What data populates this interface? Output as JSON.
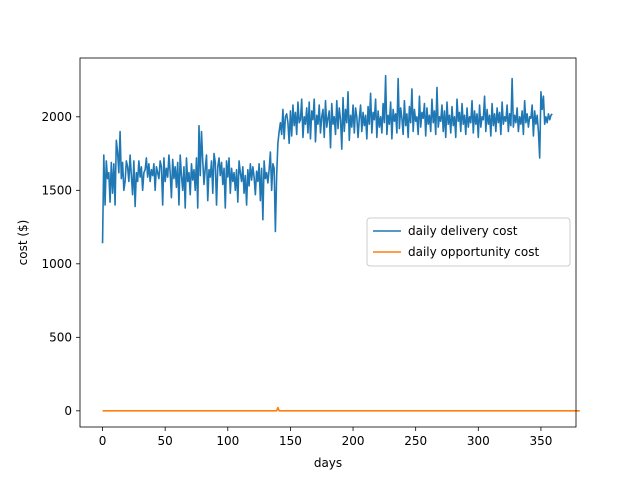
{
  "chart_data": {
    "type": "line",
    "title": "",
    "xlabel": "days",
    "ylabel": "cost ($)",
    "xlim": [
      -18,
      378
    ],
    "ylim": [
      -110,
      2400
    ],
    "xticks": [
      0,
      50,
      100,
      150,
      200,
      250,
      300,
      350
    ],
    "yticks": [
      0,
      500,
      1000,
      1500,
      2000
    ],
    "grid": false,
    "legend_position": "center-right",
    "series": [
      {
        "name": "daily delivery cost",
        "color": "#1f77b4",
        "x_start": 0,
        "x_step": 1,
        "values": [
          1140,
          1740,
          1400,
          1700,
          1580,
          1620,
          1420,
          1690,
          1480,
          1680,
          1400,
          1840,
          1760,
          1620,
          1900,
          1580,
          1690,
          1500,
          1560,
          1700,
          1660,
          1560,
          1740,
          1600,
          1470,
          1700,
          1390,
          1620,
          1560,
          1700,
          1590,
          1660,
          1500,
          1620,
          1640,
          1720,
          1590,
          1680,
          1560,
          1640,
          1600,
          1680,
          1500,
          1660,
          1620,
          1580,
          1700,
          1660,
          1400,
          1720,
          1560,
          1650,
          1590,
          1740,
          1620,
          1450,
          1710,
          1580,
          1660,
          1520,
          1690,
          1400,
          1740,
          1600,
          1500,
          1660,
          1380,
          1720,
          1560,
          1620,
          1470,
          1680,
          1570,
          1640,
          1500,
          1720,
          1380,
          1940,
          1600,
          1900,
          1700,
          1540,
          1650,
          1740,
          1430,
          1640,
          1590,
          1700,
          1480,
          1750,
          1690,
          1400,
          1660,
          1720,
          1600,
          1690,
          1540,
          1650,
          1380,
          1700,
          1590,
          1720,
          1480,
          1650,
          1560,
          1620,
          1500,
          1640,
          1420,
          1700,
          1620,
          1560,
          1660,
          1480,
          1600,
          1400,
          1640,
          1530,
          1680,
          1570,
          1660,
          1590,
          1470,
          1630,
          1560,
          1680,
          1430,
          1650,
          1300,
          1700,
          1580,
          1620,
          1550,
          1640,
          1760,
          1500,
          1680,
          1650,
          1220,
          1600,
          1820,
          1900,
          1960,
          1880,
          2050,
          1850,
          2000,
          2020,
          1960,
          1820,
          2040,
          1870,
          2080,
          1940,
          2030,
          1880,
          2100,
          1960,
          1980,
          2120,
          1860,
          2000,
          1950,
          2060,
          1890,
          2100,
          1850,
          2040,
          1980,
          2120,
          1830,
          2010,
          1950,
          2080,
          1890,
          2000,
          2050,
          1860,
          2110,
          1930,
          1990,
          2040,
          1790,
          2090,
          1950,
          2000,
          1880,
          2110,
          1920,
          2060,
          1980,
          1780,
          2130,
          1900,
          2050,
          1960,
          2170,
          1840,
          2010,
          1930,
          2080,
          1890,
          2060,
          2000,
          1860,
          1990,
          2080,
          1900,
          2030,
          1940,
          2010,
          1850,
          2070,
          1950,
          2160,
          1890,
          2030,
          1980,
          2120,
          1860,
          2040,
          1930,
          2000,
          1890,
          2090,
          1960,
          2280,
          1880,
          2010,
          1950,
          2100,
          1850,
          2050,
          1970,
          2020,
          1890,
          2260,
          1920,
          2060,
          1990,
          1880,
          2110,
          1940,
          2020,
          1860,
          2070,
          1960,
          2190,
          1900,
          2050,
          1970,
          2000,
          1880,
          2140,
          1930,
          2030,
          1990,
          2090,
          1870,
          2060,
          1950,
          2010,
          1900,
          2120,
          1960,
          2040,
          1880,
          2200,
          1930,
          2000,
          1970,
          2080,
          1900,
          2040,
          1860,
          2100,
          1950,
          2010,
          1890,
          2070,
          1940,
          2000,
          1860,
          2120,
          1970,
          2030,
          1900,
          2090,
          1950,
          2010,
          1880,
          2060,
          1930,
          2000,
          1960,
          2110,
          1890,
          2040,
          1950,
          2020,
          1860,
          2080,
          1930,
          2000,
          1980,
          2140,
          1900,
          2050,
          1950,
          2010,
          1870,
          2090,
          1940,
          2020,
          1900,
          2060,
          1960,
          2030,
          1880,
          2100,
          1950,
          2000,
          1970,
          2080,
          1900,
          2020,
          1940,
          2260,
          1930,
          2010,
          1960,
          2060,
          1900,
          2000,
          1950,
          2040,
          1880,
          2110,
          1960,
          2020,
          1930,
          2000,
          1990,
          2080,
          1870,
          2040,
          1950,
          2010,
          1900,
          1720,
          2170,
          2050,
          2140,
          1950,
          2000,
          1960,
          2020,
          1980,
          2010,
          2020
        ]
      },
      {
        "name": "daily opportunity cost",
        "color": "#ff7f0e",
        "x_start": 0,
        "x_step": 1,
        "values": [
          0,
          0,
          0,
          0,
          0,
          0,
          0,
          0,
          0,
          0,
          0,
          0,
          0,
          0,
          0,
          0,
          0,
          0,
          0,
          0,
          0,
          0,
          0,
          0,
          0,
          0,
          0,
          0,
          0,
          0,
          0,
          0,
          0,
          0,
          0,
          0,
          0,
          0,
          0,
          0,
          0,
          0,
          0,
          0,
          0,
          0,
          0,
          0,
          0,
          0,
          0,
          0,
          0,
          0,
          0,
          0,
          0,
          0,
          0,
          0,
          0,
          0,
          0,
          0,
          0,
          0,
          0,
          0,
          0,
          0,
          0,
          0,
          0,
          0,
          0,
          0,
          0,
          0,
          0,
          0,
          0,
          0,
          0,
          0,
          0,
          0,
          0,
          0,
          0,
          0,
          0,
          0,
          0,
          0,
          0,
          0,
          0,
          0,
          0,
          0,
          0,
          0,
          0,
          0,
          0,
          0,
          0,
          0,
          0,
          0,
          0,
          0,
          0,
          0,
          0,
          0,
          0,
          0,
          0,
          0,
          0,
          0,
          0,
          0,
          0,
          0,
          0,
          0,
          0,
          0,
          0,
          0,
          0,
          0,
          0,
          0,
          0,
          0,
          0,
          0,
          22,
          0,
          0,
          0,
          0,
          0,
          0,
          0,
          0,
          0,
          0,
          0,
          0,
          0,
          0,
          0,
          0,
          0,
          0,
          0,
          0,
          0,
          0,
          0,
          0,
          0,
          0,
          0,
          0,
          0,
          0,
          0,
          0,
          0,
          0,
          0,
          0,
          0,
          0,
          0,
          0,
          0,
          0,
          0,
          0,
          0,
          0,
          0,
          0,
          0,
          0,
          0,
          0,
          0,
          0,
          0,
          0,
          0,
          0,
          0,
          0,
          0,
          0,
          0,
          0,
          0,
          0,
          0,
          0,
          0,
          0,
          0,
          0,
          0,
          0,
          0,
          0,
          0,
          0,
          0,
          0,
          0,
          0,
          0,
          0,
          0,
          0,
          0,
          0,
          0,
          0,
          0,
          0,
          0,
          0,
          0,
          0,
          0,
          0,
          0,
          0,
          0,
          0,
          0,
          0,
          0,
          0,
          0,
          0,
          0,
          0,
          0,
          0,
          0,
          0,
          0,
          0,
          0,
          0,
          0,
          0,
          0,
          0,
          0,
          0,
          0,
          0,
          0,
          0,
          0,
          0,
          0,
          0,
          0,
          0,
          0,
          0,
          0,
          0,
          0,
          0,
          0,
          0,
          0,
          0,
          0,
          0,
          0,
          0,
          0,
          0,
          0,
          0,
          0,
          0,
          0,
          0,
          0,
          0,
          0,
          0,
          0,
          0,
          0,
          0,
          0,
          0,
          0,
          0,
          0,
          0,
          0,
          0,
          0,
          0,
          0,
          0,
          0,
          0,
          0,
          0,
          0,
          0,
          0,
          0,
          0,
          0,
          0,
          0,
          0,
          0,
          0,
          0,
          0,
          0,
          0,
          0,
          0,
          0,
          0,
          0,
          0,
          0,
          0,
          0,
          0,
          0,
          0,
          0,
          0,
          0,
          0,
          0,
          0,
          0,
          0,
          0,
          0,
          0,
          0,
          0,
          0,
          0,
          0,
          0,
          0,
          0,
          0,
          0,
          0,
          0,
          0,
          0,
          0,
          0,
          0,
          0,
          0,
          0,
          0,
          0,
          0
        ]
      }
    ]
  }
}
